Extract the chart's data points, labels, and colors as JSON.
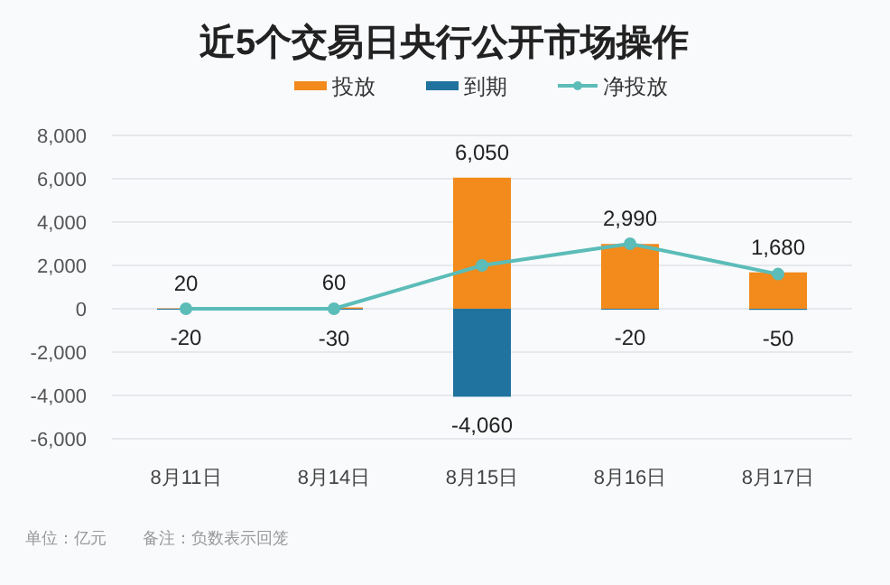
{
  "chart_data": {
    "type": "bar",
    "title": "近5个交易日央行公开市场操作",
    "categories": [
      "8月11日",
      "8月14日",
      "8月15日",
      "8月16日",
      "8月17日"
    ],
    "series": [
      {
        "name": "投放",
        "color": "#f28a1c",
        "values": [
          20,
          60,
          6050,
          2990,
          1680
        ],
        "value_labels": [
          "20",
          "60",
          "6,050",
          "2,990",
          "1,680"
        ]
      },
      {
        "name": "到期",
        "color": "#21739f",
        "values": [
          -20,
          -30,
          -4060,
          -20,
          -50
        ],
        "value_labels": [
          "-20",
          "-30",
          "-4,060",
          "-20",
          "-50"
        ]
      },
      {
        "name": "净投放",
        "type": "line",
        "color": "#5bbcb8",
        "values": [
          0,
          0,
          2000,
          3000,
          1600
        ],
        "marker": "circle"
      }
    ],
    "ylim": [
      -6000,
      8000
    ],
    "yticks": [
      {
        "value": -6000,
        "label": "-6,000"
      },
      {
        "value": -4000,
        "label": "-4,000"
      },
      {
        "value": -2000,
        "label": "-2,000"
      },
      0,
      {
        "value": 2000,
        "label": "2,000"
      },
      {
        "value": 4000,
        "label": "4,000"
      },
      {
        "value": 6000,
        "label": "6,000"
      },
      {
        "value": 8000,
        "label": "8,000"
      }
    ],
    "grid": "y",
    "legend": "top",
    "annotations": [
      "单位：亿元",
      "备注：负数表示回笼"
    ]
  }
}
